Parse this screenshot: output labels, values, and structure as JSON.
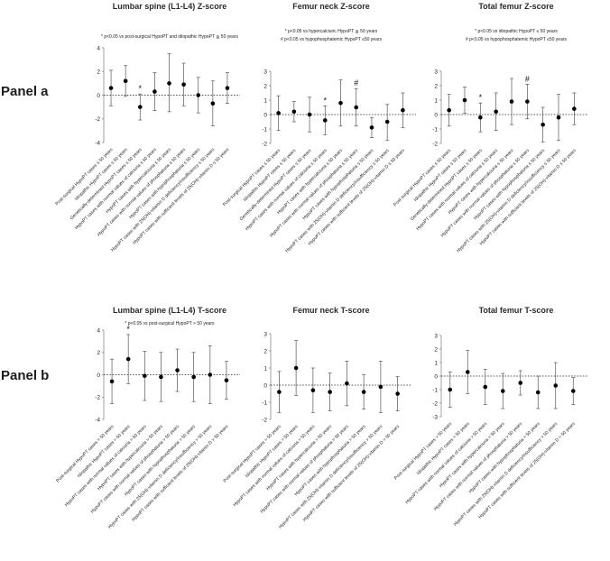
{
  "panels": [
    {
      "label": "Panel a"
    },
    {
      "label": "Panel b"
    }
  ],
  "chart_data": [
    {
      "type": "scatter",
      "title": "Lumbar spine (L1-L4) Z-score",
      "notes": [
        "* p<0.05 vs post-surgical HypoPT and idiopathic HypoPT ≦ 50 years"
      ],
      "ylim": [
        -4,
        4
      ],
      "yticks": [
        -4,
        -2,
        0,
        2,
        4
      ],
      "reference_line": 0,
      "categories": [
        "Post-surgical HypoPT cases ≤ 50 years",
        "Idiopathic HypoPT cases ≤ 50 years",
        "Genetically-determined HypoPT cases ≤ 50 years",
        "HypoPT cases with normal values of calciuria ≤ 50 years",
        "HypoPT cases with hypercalciuria ≤ 50 years",
        "HypoPT cases with normal values of phosphaturia ≤ 50 years",
        "HypoPT cases with hypophosphaturia ≤ 50 years",
        "HypoPT cases with 25(OH)-vitamin D deficiency/insufficiency ≤ 50 years",
        "HypoPT cases with sufficient levels of 25(OH)-vitamin D ≤ 50 years"
      ],
      "means": [
        0.6,
        1.2,
        -1.0,
        0.3,
        1.0,
        0.9,
        0.0,
        -0.7,
        0.6
      ],
      "lower": [
        -0.9,
        -0.1,
        -2.1,
        -1.3,
        -1.4,
        -0.9,
        -1.5,
        -2.6,
        -0.7
      ],
      "upper": [
        2.1,
        2.5,
        0.1,
        1.9,
        3.5,
        2.7,
        1.5,
        1.2,
        1.9
      ],
      "markers": [
        "",
        "",
        "*",
        "",
        "",
        "",
        "",
        "",
        ""
      ]
    },
    {
      "type": "scatter",
      "title": "Femur neck Z-score",
      "notes": [
        "* p<0.05 vs hypercalciuric HypoPT ≦ 50 years",
        "# p<0.05 vs hypophosphatemic HypoPT ≤50 years"
      ],
      "ylim": [
        -2,
        3
      ],
      "yticks": [
        -2,
        -1,
        0,
        1,
        2,
        3
      ],
      "reference_line": 0,
      "categories": [
        "Post-surgical HypoPT cases ≤ 50 years",
        "Idiopathic HypoPT cases ≤ 50 years",
        "Genetically-determined HypoPT cases ≤ 50 years",
        "HypoPT cases with normal values of calciuria ≤ 50 years",
        "HypoPT cases with hypercalciuria ≤ 50 years",
        "HypoPT cases with normal values of phosphaturia ≤ 50 years",
        "HypoPT cases with hypophosphaturia ≤ 50 years",
        "HypoPT cases with 25(OH)-vitamin D deficiency/insufficiency ≤ 50 years",
        "HypoPT cases with sufficient levels of 25(OH)-vitamin D ≤ 50 years"
      ],
      "means": [
        0.1,
        0.2,
        0.0,
        -0.4,
        0.8,
        0.5,
        -0.9,
        -0.5,
        0.3
      ],
      "lower": [
        -1.1,
        -0.5,
        -1.2,
        -1.4,
        -0.8,
        -0.8,
        -1.6,
        -1.8,
        -0.9
      ],
      "upper": [
        1.3,
        0.9,
        1.2,
        0.6,
        2.4,
        1.8,
        -0.2,
        0.7,
        1.5
      ],
      "markers": [
        "",
        "",
        "",
        "*",
        "",
        "#",
        "",
        "",
        ""
      ]
    },
    {
      "type": "scatter",
      "title": "Total femur Z-score",
      "notes": [
        "* p<0.05 vs idiopathic HypoPT ≤ 50 years",
        "# p<0.05 vs hypophosphatemic HypoPT ≤50 years"
      ],
      "ylim": [
        -2,
        3
      ],
      "yticks": [
        -2,
        -1,
        0,
        1,
        2,
        3
      ],
      "reference_line": 0,
      "categories": [
        "Post-surgical HypoPT cases ≤ 50 years",
        "Idiopathic HypoPT cases ≤ 50 years",
        "Genetically-determined HypoPT cases ≤ 50 years",
        "HypoPT cases with normal values of calciuria ≤ 50 years",
        "HypoPT cases with hypercalciuria ≤ 50 years",
        "HypoPT cases with normal values of phosphaturia ≤ 50 years",
        "HypoPT cases with hypophosphaturia ≤ 50 years",
        "HypoPT cases with 25(OH)-vitamin D deficiency/insufficiency ≤ 50 years",
        "HypoPT cases with sufficient levels of 25(OH)-vitamin D ≤ 50 years"
      ],
      "means": [
        0.3,
        1.0,
        -0.2,
        0.2,
        0.9,
        0.9,
        -0.7,
        -0.2,
        0.4
      ],
      "lower": [
        -0.8,
        0.1,
        -1.2,
        -1.1,
        -0.7,
        -0.3,
        -1.9,
        -1.8,
        -0.7
      ],
      "upper": [
        1.4,
        1.9,
        0.8,
        1.5,
        2.5,
        2.1,
        0.5,
        1.4,
        1.5
      ],
      "markers": [
        "",
        "",
        "*",
        "",
        "",
        "#",
        "",
        "",
        ""
      ]
    },
    {
      "type": "scatter",
      "title": "Lumbar spine (L1-L4) T-score",
      "notes": [
        "* p<0.05 vs post-surgical HypoPT  > 50 years"
      ],
      "ylim": [
        -4,
        4
      ],
      "yticks": [
        -4,
        -2,
        0,
        2,
        4
      ],
      "reference_line": 0,
      "categories": [
        "Post-surgical HypoPT cases > 50 years",
        "Idiopathic HypoPT cases > 50 years",
        "HypoPT cases with normal values of calciuria > 50 years",
        "HypoPT cases with hypercalciuria > 50 years",
        "HypoPT cases with normal values of phosphaturia > 50 years",
        "HypoPT cases with hypophosphaturia > 50 years",
        "HypoPT cases with 25(OH)-vitamin D deficiency/insufficiency > 50 years",
        "HypoPT cases with sufficient levels of 25(OH)-vitamin D > 50 years"
      ],
      "means": [
        -0.6,
        1.4,
        -0.1,
        -0.2,
        0.4,
        -0.2,
        0.0,
        -0.5
      ],
      "lower": [
        -2.6,
        -0.8,
        -2.3,
        -2.4,
        -1.5,
        -2.4,
        -2.6,
        -2.2
      ],
      "upper": [
        1.4,
        3.6,
        2.1,
        2.0,
        2.3,
        2.0,
        2.6,
        1.2
      ],
      "markers": [
        "",
        "*",
        "",
        "",
        "",
        "",
        "",
        ""
      ]
    },
    {
      "type": "scatter",
      "title": "Femur neck T-score",
      "notes": [],
      "ylim": [
        -2,
        3
      ],
      "yticks": [
        -2,
        -1,
        0,
        1,
        2,
        3
      ],
      "reference_line": 0,
      "categories": [
        "Post-surgical HypoPT cases > 50 years",
        "Idiopathic HypoPT cases > 50 years",
        "HypoPT cases with normal values of calciuria > 50 years",
        "HypoPT cases with hypercalciuria > 50 years",
        "HypoPT cases with normal values of phosphaturia > 50 years",
        "HypoPT cases with hypophosphaturia > 50 years",
        "HypoPT cases with 25(OH)-vitamin D deficiency/insufficiency > 50 years",
        "HypoPT cases with sufficient levels of 25(OH)-vitamin D > 50 years"
      ],
      "means": [
        -0.4,
        1.0,
        -0.3,
        -0.4,
        0.1,
        -0.4,
        -0.1,
        -0.5
      ],
      "lower": [
        -1.6,
        -0.6,
        -1.6,
        -1.5,
        -1.2,
        -1.4,
        -1.6,
        -1.5
      ],
      "upper": [
        0.8,
        2.6,
        1.0,
        0.7,
        1.4,
        0.6,
        1.4,
        0.5
      ],
      "markers": [
        "",
        "",
        "",
        "",
        "",
        "",
        "",
        ""
      ]
    },
    {
      "type": "scatter",
      "title": "Total femur T-score",
      "notes": [],
      "ylim": [
        -3,
        3
      ],
      "yticks": [
        -3,
        -2,
        -1,
        0,
        1,
        2,
        3
      ],
      "reference_line": 0,
      "categories": [
        "Post-surgical HypoPT cases > 50 years",
        "Idiopathic HypoPT cases > 50 years",
        "HypoPT cases with normal values of calciuria > 50 years",
        "HypoPT cases with hypercalciuria > 50 years",
        "HypoPT cases with normal values of phosphaturia > 50 years",
        "HypoPT cases with hypophosphaturia > 50 years",
        "HypoPT cases with 25(OH)-vitamin D deficiency/insufficiency > 50 years",
        "HypoPT cases with sufficient levels of 25(OH)-vitamin D > 50 years"
      ],
      "means": [
        -1.0,
        0.3,
        -0.8,
        -1.1,
        -0.5,
        -1.2,
        -0.7,
        -1.1
      ],
      "lower": [
        -2.3,
        -1.3,
        -2.1,
        -2.4,
        -1.4,
        -2.4,
        -2.4,
        -2.1
      ],
      "upper": [
        0.3,
        1.9,
        0.5,
        0.2,
        0.4,
        0.0,
        1.0,
        -0.1
      ],
      "markers": [
        "",
        "",
        "",
        "",
        "",
        "",
        "",
        ""
      ]
    }
  ]
}
